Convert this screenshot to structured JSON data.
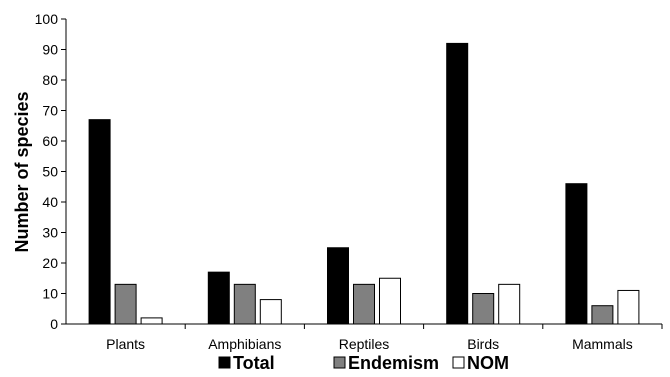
{
  "chart_data": {
    "type": "bar",
    "categories": [
      "Plants",
      "Amphibians",
      "Reptiles",
      "Birds",
      "Mammals"
    ],
    "series": [
      {
        "name": "Total",
        "values": [
          67,
          17,
          25,
          92,
          46
        ],
        "color": "#000000"
      },
      {
        "name": "Endemism",
        "values": [
          13,
          13,
          13,
          10,
          6
        ],
        "color": "#808080"
      },
      {
        "name": "NOM",
        "values": [
          2,
          8,
          15,
          13,
          11
        ],
        "color": "#ffffff"
      }
    ],
    "ylabel": "Number of species",
    "xlabel": "",
    "ylim": [
      0,
      100
    ],
    "yticks": [
      "0",
      "10",
      "20",
      "30",
      "40",
      "50",
      "60",
      "70",
      "80",
      "90",
      "100"
    ],
    "grid": false,
    "legend_position": "bottom"
  }
}
